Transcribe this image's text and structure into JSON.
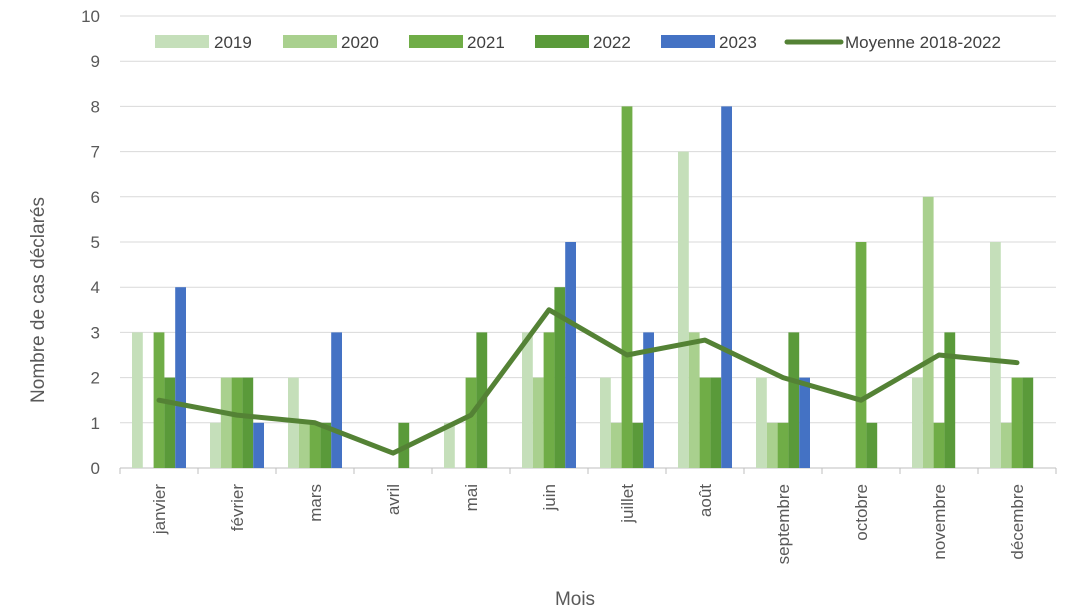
{
  "chart_data": {
    "type": "bar",
    "title": "",
    "xlabel": "Mois",
    "ylabel": "Nombre de cas déclarés",
    "ylim": [
      0,
      10
    ],
    "y_ticks": [
      "0",
      "1",
      "2",
      "3",
      "4",
      "5",
      "6",
      "7",
      "8",
      "9",
      "10"
    ],
    "grid": "horizontal",
    "legend_position": "top",
    "categories": [
      "janvier",
      "février",
      "mars",
      "avril",
      "mai",
      "juin",
      "juillet",
      "août",
      "septembre",
      "octobre",
      "novembre",
      "décembre"
    ],
    "series": [
      {
        "name": "2019",
        "type": "bar",
        "color": "#c5dfba",
        "values": [
          3,
          1,
          2,
          0,
          1,
          3,
          2,
          7,
          2,
          0,
          2,
          5
        ]
      },
      {
        "name": "2020",
        "type": "bar",
        "color": "#a9d08e",
        "values": [
          0,
          2,
          1,
          0,
          0,
          2,
          1,
          3,
          1,
          0,
          6,
          1
        ]
      },
      {
        "name": "2021",
        "type": "bar",
        "color": "#70ad47",
        "values": [
          3,
          2,
          1,
          0,
          2,
          3,
          8,
          2,
          1,
          5,
          1,
          2
        ]
      },
      {
        "name": "2022",
        "type": "bar",
        "color": "#5a9a3a",
        "values": [
          2,
          2,
          1,
          1,
          3,
          4,
          1,
          2,
          3,
          1,
          3,
          2
        ]
      },
      {
        "name": "2023",
        "type": "bar",
        "color": "#4472c4",
        "values": [
          4,
          1,
          3,
          0,
          0,
          5,
          3,
          8,
          2,
          0,
          0,
          0
        ]
      },
      {
        "name": "Moyenne 2018-2022",
        "type": "line",
        "color": "#548235",
        "values": [
          1.5,
          1.17,
          1.0,
          0.33,
          1.17,
          3.5,
          2.5,
          2.83,
          2.0,
          1.5,
          2.5,
          2.33
        ]
      }
    ]
  }
}
